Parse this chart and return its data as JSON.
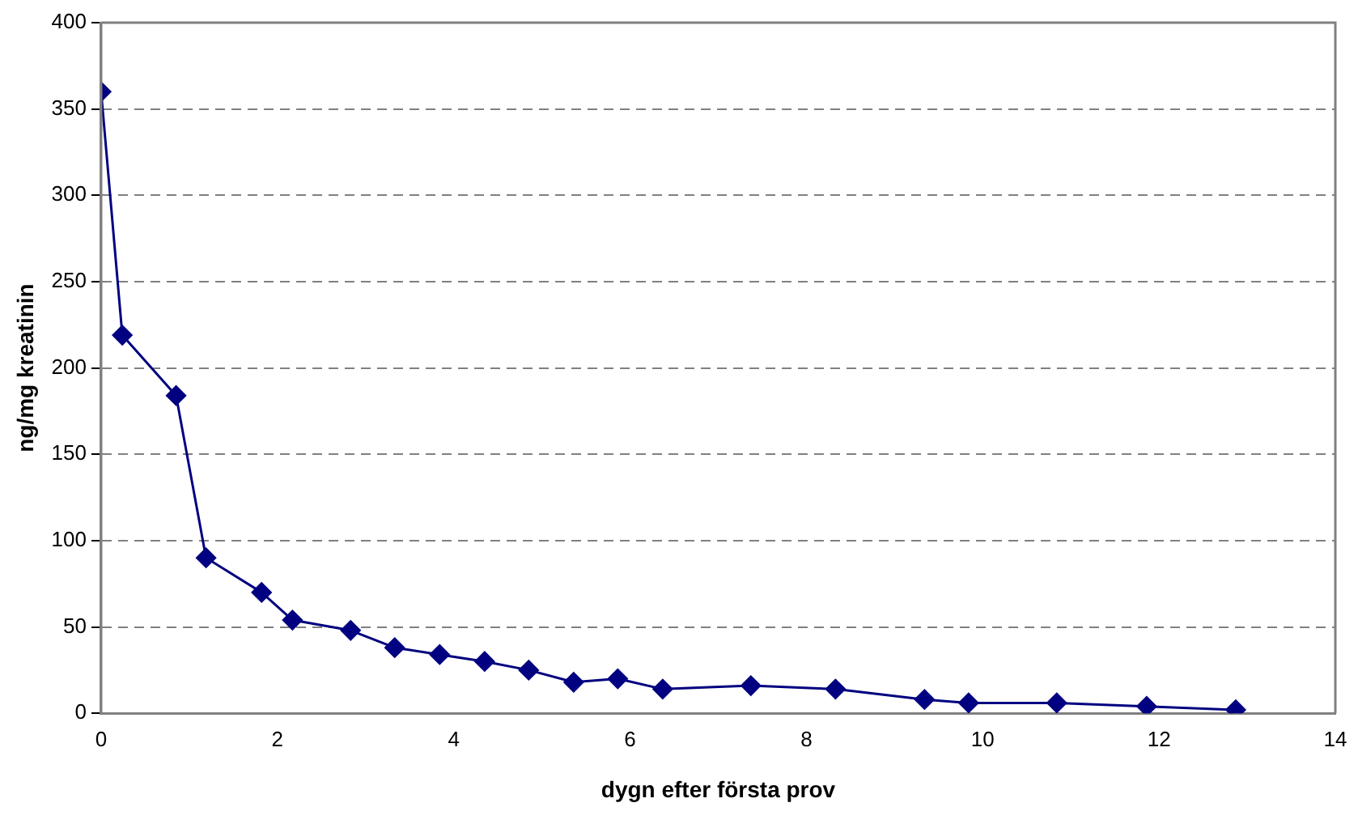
{
  "chart_data": {
    "type": "line",
    "xlabel": "dygn efter första prov",
    "ylabel": "ng/mg kreatinin",
    "x": [
      0,
      0.24,
      0.85,
      1.19,
      1.82,
      2.17,
      2.83,
      3.33,
      3.84,
      4.35,
      4.85,
      5.36,
      5.86,
      6.37,
      7.37,
      8.33,
      9.34,
      9.84,
      10.84,
      11.86,
      12.87
    ],
    "series": [
      {
        "color": "#000080",
        "values": [
          360,
          219,
          184,
          90,
          70,
          54,
          48,
          38,
          34,
          30,
          25,
          18,
          20,
          14,
          16,
          14,
          8,
          6,
          6,
          4,
          2
        ]
      }
    ],
    "xlim": [
      0,
      14
    ],
    "xticks": [
      0,
      2,
      4,
      6,
      8,
      10,
      12,
      14
    ],
    "ylim": [
      0,
      400
    ],
    "yticks": [
      0,
      50,
      100,
      150,
      200,
      250,
      300,
      350,
      400
    ],
    "grid": "y",
    "marker": "diamond",
    "line_style": "solid",
    "legend": false
  }
}
